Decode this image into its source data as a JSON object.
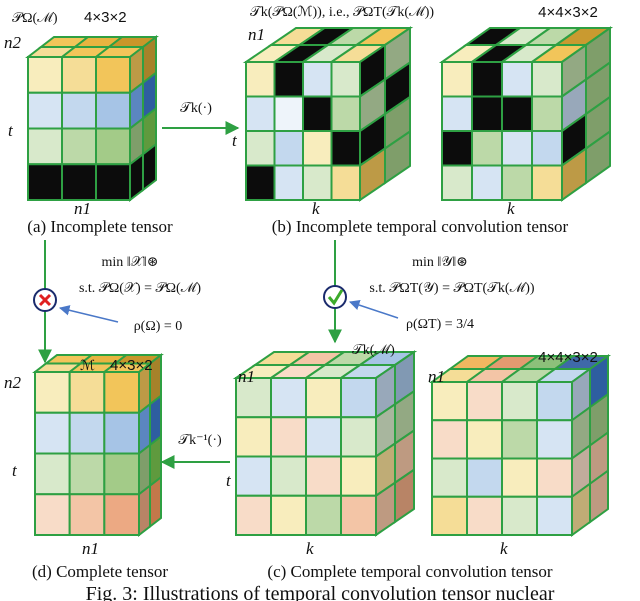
{
  "panel_a": {
    "tensor_label": "𝒫Ω(ℳ)",
    "size": "4×3×2",
    "axis_top": "n2",
    "axis_left": "t",
    "axis_bottom": "n1",
    "caption": "(a) Incomplete tensor"
  },
  "panel_b": {
    "tensor_label": "𝒯k(𝒫Ω(ℳ)), i.e., 𝒫ΩT(𝒯k(ℳ))",
    "size": "4×4×3×2",
    "axis_top": "n1",
    "axis_left": "t",
    "axis_bottom_1": "k",
    "axis_bottom_2": "k",
    "caption": "(b) Incomplete temporal convolution tensor"
  },
  "transform": "𝒯k(·)",
  "left_problem": {
    "objective": "min ‖𝒳‖⊛",
    "constraint": "s.t. 𝒫Ω(𝒳) = 𝒫Ω(ℳ)",
    "rate": "ρ(Ω) = 0"
  },
  "right_problem": {
    "objective": "min ‖𝒴‖⊛",
    "constraint": "s.t. 𝒫ΩT(𝒴) = 𝒫ΩT(𝒯k(ℳ))",
    "rate": "ρ(ΩT) = 3/4",
    "result": "𝒯k(ℳ)"
  },
  "panel_d": {
    "tensor_label": "ℳ",
    "size": "4×3×2",
    "axis_top": "n2",
    "axis_left": "t",
    "axis_bottom": "n1",
    "caption": "(d) Complete tensor"
  },
  "panel_c": {
    "size": "4×4×3×2",
    "axis_top_1": "n1",
    "axis_top_2": "n1",
    "axis_left": "t",
    "axis_bottom_1": "k",
    "axis_bottom_2": "k",
    "caption": "(c) Complete temporal convolution tensor"
  },
  "inverse_transform": "𝒯k⁻¹(·)",
  "figure_caption": "Fig. 3: Illustrations of temporal convolution tensor nuclear"
}
